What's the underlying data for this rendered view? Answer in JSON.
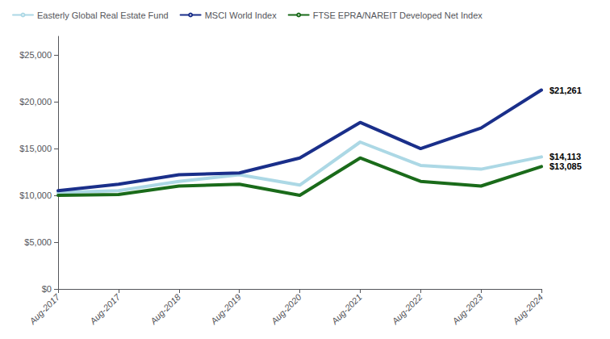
{
  "chart_data": {
    "type": "line",
    "categories": [
      "Aug-2017",
      "Aug-2017",
      "Aug-2018",
      "Aug-2019",
      "Aug-2020",
      "Aug-2021",
      "Aug-2022",
      "Aug-2023",
      "Aug-2024"
    ],
    "series": [
      {
        "name": "Easterly Global Real Estate Fund",
        "color": "#acd8e5",
        "values": [
          10300,
          10500,
          11500,
          12200,
          11100,
          15700,
          13200,
          12800,
          14113
        ]
      },
      {
        "name": "MSCI World Index",
        "color": "#1a2f8a",
        "values": [
          10500,
          11200,
          12200,
          12400,
          14000,
          17800,
          15000,
          17200,
          21261
        ]
      },
      {
        "name": "FTSE EPRA/NAREIT Developed Net Index",
        "color": "#1a6b1a",
        "values": [
          10000,
          10100,
          11000,
          11200,
          10000,
          14000,
          11500,
          11000,
          13085
        ]
      }
    ],
    "annotations": [
      {
        "text": "$21,261",
        "value": 21261
      },
      {
        "text": "$14,113",
        "value": 14113
      },
      {
        "text": "$13,085",
        "value": 13085
      }
    ],
    "ylim": [
      0,
      27000
    ],
    "yticks": [
      {
        "value": 0,
        "label": "$0"
      },
      {
        "value": 5000,
        "label": "$5,000"
      },
      {
        "value": 10000,
        "label": "$10,000"
      },
      {
        "value": 15000,
        "label": "$15,000"
      },
      {
        "value": 20000,
        "label": "$20,000"
      },
      {
        "value": 25000,
        "label": "$25,000"
      }
    ],
    "grid": false,
    "legend": "upper left"
  }
}
